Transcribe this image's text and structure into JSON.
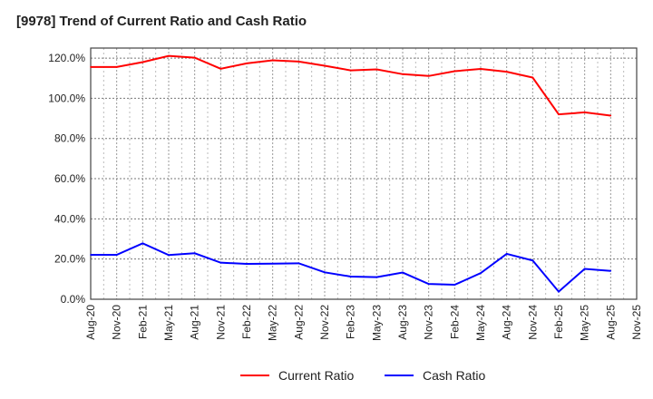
{
  "chart_data": {
    "type": "line",
    "title": "[9978]  Trend of Current Ratio and Cash Ratio",
    "xlabel": "",
    "ylabel": "",
    "ylim": [
      0,
      125
    ],
    "yticks": [
      "0.0%",
      "20.0%",
      "40.0%",
      "60.0%",
      "80.0%",
      "100.0%",
      "120.0%"
    ],
    "ytick_values": [
      0,
      20,
      40,
      60,
      80,
      100,
      120
    ],
    "xticks": [
      "Aug-20",
      "Nov-20",
      "Feb-21",
      "May-21",
      "Aug-21",
      "Nov-21",
      "Feb-22",
      "May-22",
      "Aug-22",
      "Nov-22",
      "Feb-23",
      "May-23",
      "Aug-23",
      "Nov-23",
      "Feb-24",
      "May-24",
      "Aug-24",
      "Nov-24",
      "Feb-25",
      "May-25",
      "Aug-25",
      "Nov-25"
    ],
    "grid": true,
    "legend_position": "bottom",
    "series": [
      {
        "name": "Current Ratio",
        "color": "#ff0000",
        "values": [
          115.6,
          115.6,
          118.0,
          121.1,
          120.2,
          114.7,
          117.4,
          118.9,
          118.3,
          116.2,
          113.9,
          114.4,
          112.0,
          111.1,
          113.5,
          114.6,
          113.2,
          110.3,
          92.0,
          93.0,
          91.4
        ]
      },
      {
        "name": "Cash Ratio",
        "color": "#0000ff",
        "values": [
          22.1,
          22.1,
          27.8,
          22.0,
          22.9,
          18.2,
          17.6,
          17.7,
          17.9,
          13.4,
          11.3,
          11.0,
          13.3,
          7.6,
          7.2,
          13.0,
          22.6,
          19.3,
          3.8,
          15.1,
          14.1
        ]
      }
    ]
  }
}
